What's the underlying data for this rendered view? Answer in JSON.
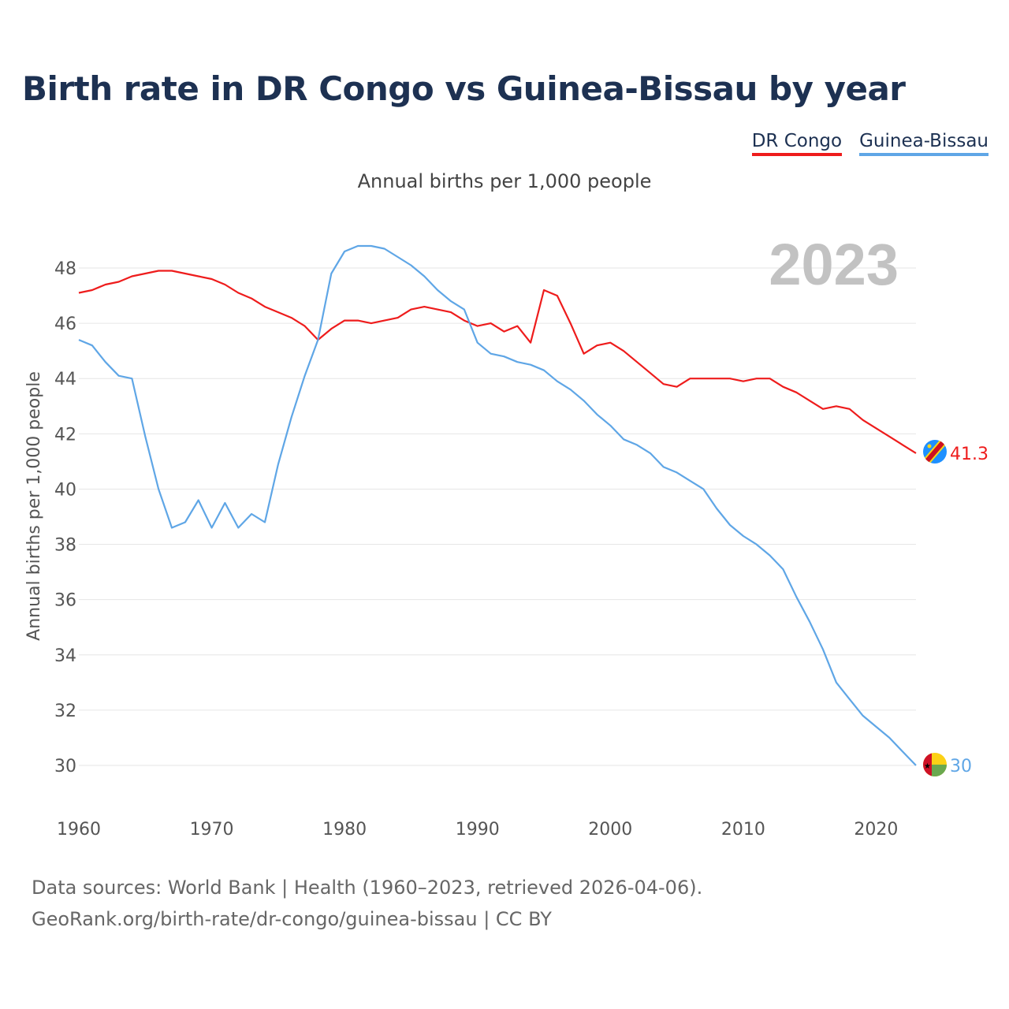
{
  "colors": {
    "congo": "#ee1c1c",
    "guinea_bissau": "#5fa6e6",
    "grid": "#e6e6e6",
    "year_label": "#c2c2c2"
  },
  "chart_data": {
    "type": "line",
    "title": "Birth rate in DR Congo vs Guinea-Bissau by year",
    "subtitle": "Annual births per 1,000 people",
    "xlabel": "",
    "ylabel": "Annual births per 1,000 people",
    "xlim": [
      1960,
      2023
    ],
    "ylim": [
      29,
      49.5
    ],
    "x_ticks": [
      1960,
      1970,
      1980,
      1990,
      2000,
      2010,
      2020
    ],
    "y_ticks": [
      30,
      32,
      34,
      36,
      38,
      40,
      42,
      44,
      46,
      48
    ],
    "year_label": "2023",
    "legend_position": "top-right",
    "series": [
      {
        "name": "DR Congo",
        "end_label": "41.3",
        "x": [
          1960,
          1961,
          1962,
          1963,
          1964,
          1965,
          1966,
          1967,
          1968,
          1969,
          1970,
          1971,
          1972,
          1973,
          1974,
          1975,
          1976,
          1977,
          1978,
          1979,
          1980,
          1981,
          1982,
          1983,
          1984,
          1985,
          1986,
          1987,
          1988,
          1989,
          1990,
          1991,
          1992,
          1993,
          1994,
          1995,
          1996,
          1997,
          1998,
          1999,
          2000,
          2001,
          2002,
          2003,
          2004,
          2005,
          2006,
          2007,
          2008,
          2009,
          2010,
          2011,
          2012,
          2013,
          2014,
          2015,
          2016,
          2017,
          2018,
          2019,
          2020,
          2021,
          2022,
          2023
        ],
        "values": [
          47.1,
          47.2,
          47.4,
          47.5,
          47.7,
          47.8,
          47.9,
          47.9,
          47.8,
          47.7,
          47.6,
          47.4,
          47.1,
          46.9,
          46.6,
          46.4,
          46.2,
          45.9,
          45.4,
          45.8,
          46.1,
          46.1,
          46.0,
          46.1,
          46.2,
          46.5,
          46.6,
          46.5,
          46.4,
          46.1,
          45.9,
          46.0,
          45.7,
          45.9,
          45.3,
          47.2,
          47.0,
          46.0,
          44.9,
          45.2,
          45.3,
          45.0,
          44.6,
          44.2,
          43.8,
          43.7,
          44.0,
          44.0,
          44.0,
          44.0,
          43.9,
          44.0,
          44.0,
          43.7,
          43.5,
          43.2,
          42.9,
          43.0,
          42.9,
          42.5,
          42.2,
          41.9,
          41.6,
          41.3
        ]
      },
      {
        "name": "Guinea-Bissau",
        "end_label": "30",
        "x": [
          1960,
          1961,
          1962,
          1963,
          1964,
          1965,
          1966,
          1967,
          1968,
          1969,
          1970,
          1971,
          1972,
          1973,
          1974,
          1975,
          1976,
          1977,
          1978,
          1979,
          1980,
          1981,
          1982,
          1983,
          1984,
          1985,
          1986,
          1987,
          1988,
          1989,
          1990,
          1991,
          1992,
          1993,
          1994,
          1995,
          1996,
          1997,
          1998,
          1999,
          2000,
          2001,
          2002,
          2003,
          2004,
          2005,
          2006,
          2007,
          2008,
          2009,
          2010,
          2011,
          2012,
          2013,
          2014,
          2015,
          2016,
          2017,
          2018,
          2019,
          2020,
          2021,
          2022,
          2023
        ],
        "values": [
          45.4,
          45.2,
          44.6,
          44.1,
          44.0,
          41.9,
          40.0,
          38.6,
          38.8,
          39.6,
          38.6,
          39.5,
          38.6,
          39.1,
          38.8,
          40.9,
          42.6,
          44.1,
          45.4,
          47.8,
          48.6,
          48.8,
          48.8,
          48.7,
          48.4,
          48.1,
          47.7,
          47.2,
          46.8,
          46.5,
          45.3,
          44.9,
          44.8,
          44.6,
          44.5,
          44.3,
          43.9,
          43.6,
          43.2,
          42.7,
          42.3,
          41.8,
          41.6,
          41.3,
          40.8,
          40.6,
          40.3,
          40.0,
          39.3,
          38.7,
          38.3,
          38.0,
          37.6,
          37.1,
          36.1,
          35.2,
          34.2,
          33.0,
          32.4,
          31.8,
          31.4,
          31.0,
          30.5,
          30.0
        ]
      }
    ]
  },
  "footer": {
    "line1": "Data sources: World Bank | Health (1960–2023, retrieved 2026-04-06).",
    "line2": "GeoRank.org/birth-rate/dr-congo/guinea-bissau | CC BY"
  }
}
